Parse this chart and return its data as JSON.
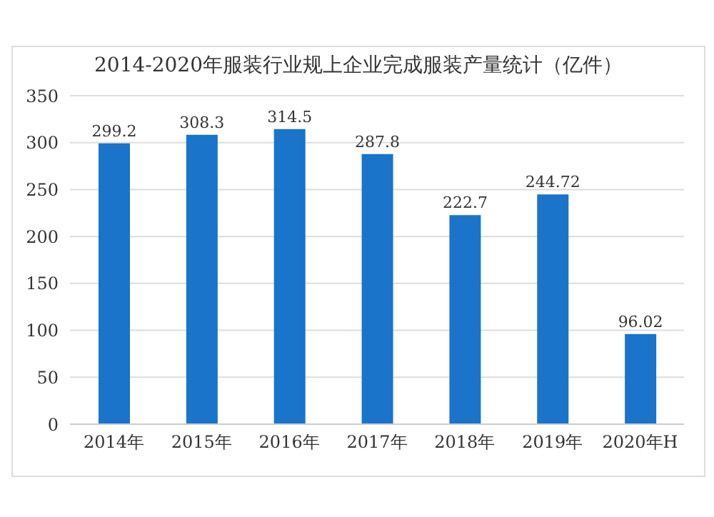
{
  "chart_data": {
    "type": "bar",
    "title": "2014-2020年服装行业规上企业完成服装产量统计（亿件）",
    "categories": [
      "2014年",
      "2015年",
      "2016年",
      "2017年",
      "2018年",
      "2019年",
      "2020年H"
    ],
    "values": [
      299.2,
      308.3,
      314.5,
      287.8,
      222.7,
      244.72,
      96.02
    ],
    "color": "#1a74c9",
    "ylim": [
      0,
      350
    ],
    "yticks": [
      0,
      50,
      100,
      150,
      200,
      250,
      300,
      350
    ],
    "grid": "y",
    "data_labels": true
  }
}
